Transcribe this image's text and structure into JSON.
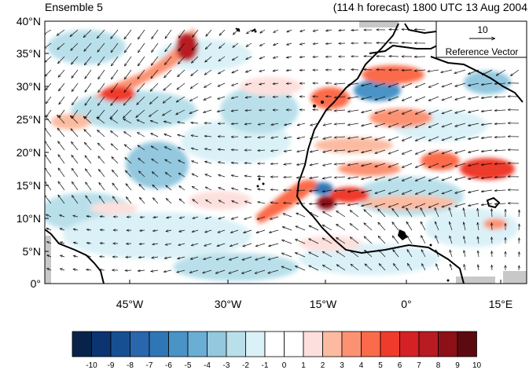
{
  "header": {
    "left_title": "Ensemble 5",
    "right_title": "(114 h forecast) 1800 UTC 13 Aug 2004"
  },
  "map": {
    "lat_labels": [
      "40°N",
      "35°N",
      "30°N",
      "25°N",
      "20°N",
      "15°N",
      "10°N",
      "5°N",
      "0°"
    ],
    "lon_labels": [
      "45°W",
      "30°W",
      "15°W",
      "0°",
      "15°E"
    ],
    "reference_vector": {
      "value": "10",
      "label": "Reference Vector"
    }
  },
  "colorbar": {
    "labels": [
      "-10",
      "-9",
      "-8",
      "-7",
      "-6",
      "-5",
      "-4",
      "-3",
      "-2",
      "-1",
      "0",
      "1",
      "2",
      "3",
      "4",
      "5",
      "6",
      "7",
      "8",
      "9",
      "10"
    ],
    "colors": [
      "#08234a",
      "#0b3471",
      "#174f93",
      "#2a66ad",
      "#2e76b6",
      "#4a93c6",
      "#6aaed6",
      "#93c8df",
      "#b9e0ea",
      "#daf1f7",
      "#ffffff",
      "#ffffff",
      "#fde0dd",
      "#fcbba1",
      "#fc9272",
      "#fb6a4a",
      "#ef3b2c",
      "#d52125",
      "#b81b21",
      "#8c1016",
      "#5c0a10"
    ]
  }
}
